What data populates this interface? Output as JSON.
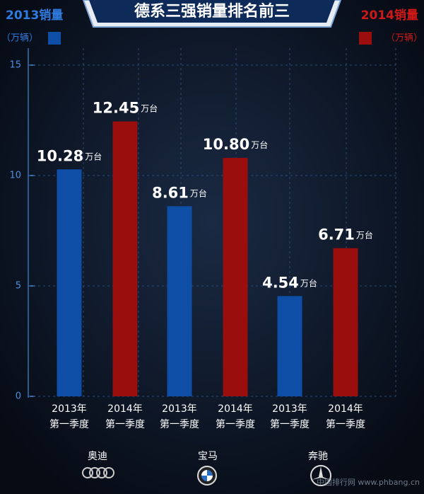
{
  "chart_data": {
    "type": "bar",
    "title": "德系三强销量排名前三",
    "categories": [
      "奥迪",
      "宝马",
      "奔驰"
    ],
    "series": [
      {
        "name": "2013销量",
        "unit": "（万辆）",
        "tick_label": [
          "2013年",
          "第一季度"
        ],
        "color": "#0e4ea6",
        "values": [
          10.28,
          8.61,
          4.54
        ],
        "value_labels": [
          "10.28",
          "8.61",
          "4.54"
        ]
      },
      {
        "name": "2014销量",
        "unit": "（万辆）",
        "tick_label": [
          "2014年",
          "第一季度"
        ],
        "color": "#9a0e0e",
        "values": [
          12.45,
          10.8,
          6.71
        ],
        "value_labels": [
          "12.45",
          "10.80",
          "6.71"
        ]
      }
    ],
    "value_unit": "万台",
    "ylim": [
      0,
      15
    ],
    "yticks": [
      0,
      5,
      10,
      15
    ],
    "grid": true,
    "watermark": "中国排行网 www.phbang.cn"
  }
}
